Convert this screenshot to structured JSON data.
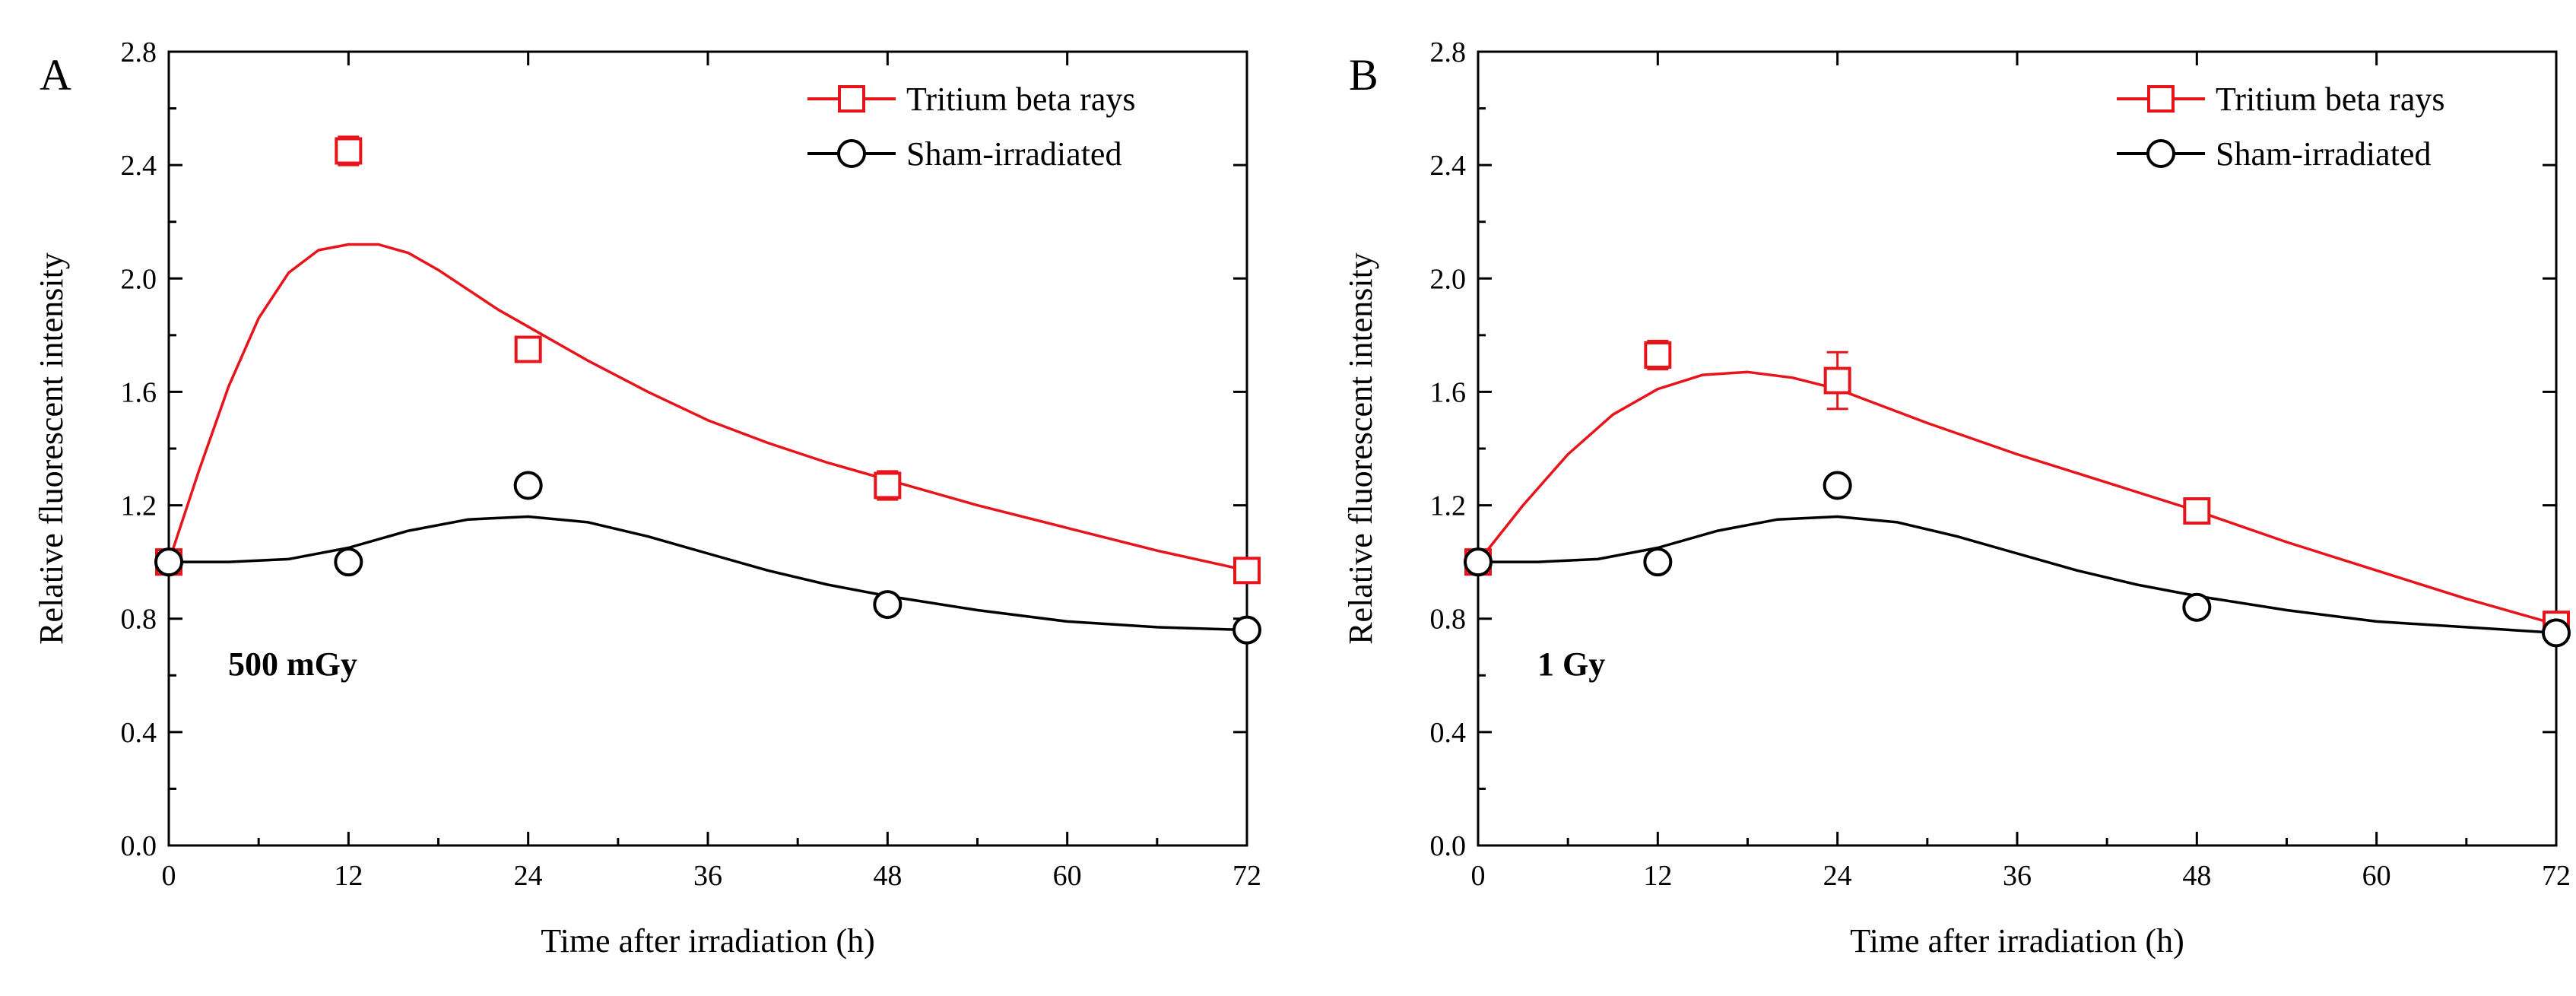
{
  "chart_data": [
    {
      "type": "line",
      "panel_label": "A",
      "annotation": "500 mGy",
      "xlabel": "Time after irradiation (h)",
      "ylabel": "Relative fluorescent intensity",
      "xlim": [
        0,
        72
      ],
      "ylim": [
        0,
        2.8
      ],
      "xticks": [
        "0",
        "12",
        "24",
        "36",
        "48",
        "60",
        "72"
      ],
      "yticks": [
        "0.0",
        "0.4",
        "0.8",
        "1.2",
        "1.6",
        "2.0",
        "2.4",
        "2.8"
      ],
      "grid": false,
      "legend_position": "top-right",
      "series": [
        {
          "name": "Tritium beta rays",
          "color": "#e8141b",
          "marker": "square",
          "x": [
            0,
            12,
            24,
            48,
            72
          ],
          "y": [
            1.0,
            2.45,
            1.75,
            1.27,
            0.97
          ],
          "error": [
            0.02,
            0.05,
            0.03,
            0.05,
            0.02
          ],
          "fit_x": [
            0,
            2,
            4,
            6,
            8,
            10,
            12,
            14,
            16,
            18,
            20,
            22,
            24,
            28,
            32,
            36,
            40,
            44,
            48,
            54,
            60,
            66,
            72
          ],
          "fit_y": [
            1.0,
            1.32,
            1.62,
            1.86,
            2.02,
            2.1,
            2.12,
            2.12,
            2.09,
            2.03,
            1.96,
            1.89,
            1.83,
            1.71,
            1.6,
            1.5,
            1.42,
            1.35,
            1.29,
            1.2,
            1.12,
            1.04,
            0.97
          ]
        },
        {
          "name": "Sham-irradiated",
          "color": "#000000",
          "marker": "circle",
          "x": [
            0,
            12,
            24,
            48,
            72
          ],
          "y": [
            1.0,
            1.0,
            1.27,
            0.85,
            0.76
          ],
          "error": [
            0.02,
            0.02,
            0.02,
            0.02,
            0.01
          ],
          "fit_x": [
            0,
            4,
            8,
            12,
            16,
            20,
            24,
            28,
            32,
            36,
            40,
            44,
            48,
            54,
            60,
            66,
            72
          ],
          "fit_y": [
            1.0,
            1.0,
            1.01,
            1.05,
            1.11,
            1.15,
            1.16,
            1.14,
            1.09,
            1.03,
            0.97,
            0.92,
            0.88,
            0.83,
            0.79,
            0.77,
            0.76
          ]
        }
      ]
    },
    {
      "type": "line",
      "panel_label": "B",
      "annotation": "1 Gy",
      "xlabel": "Time after irradiation (h)",
      "ylabel": "Relative fluorescent intensity",
      "xlim": [
        0,
        72
      ],
      "ylim": [
        0,
        2.8
      ],
      "xticks": [
        "0",
        "12",
        "24",
        "36",
        "48",
        "60",
        "72"
      ],
      "yticks": [
        "0.0",
        "0.4",
        "0.8",
        "1.2",
        "1.6",
        "2.0",
        "2.4",
        "2.8"
      ],
      "grid": false,
      "legend_position": "top-right",
      "series": [
        {
          "name": "Tritium beta rays",
          "color": "#e8141b",
          "marker": "square",
          "x": [
            0,
            12,
            24,
            48,
            72
          ],
          "y": [
            1.0,
            1.73,
            1.64,
            1.18,
            0.78
          ],
          "error": [
            0.02,
            0.05,
            0.1,
            0.03,
            0.02
          ],
          "fit_x": [
            0,
            3,
            6,
            9,
            12,
            15,
            18,
            21,
            24,
            30,
            36,
            42,
            48,
            54,
            60,
            66,
            72
          ],
          "fit_y": [
            1.0,
            1.2,
            1.38,
            1.52,
            1.61,
            1.66,
            1.67,
            1.65,
            1.61,
            1.49,
            1.38,
            1.28,
            1.18,
            1.07,
            0.97,
            0.87,
            0.78
          ]
        },
        {
          "name": "Sham-irradiated",
          "color": "#000000",
          "marker": "circle",
          "x": [
            0,
            12,
            24,
            48,
            72
          ],
          "y": [
            1.0,
            1.0,
            1.27,
            0.84,
            0.75
          ],
          "error": [
            0.02,
            0.02,
            0.03,
            0.02,
            0.01
          ],
          "fit_x": [
            0,
            4,
            8,
            12,
            16,
            20,
            24,
            28,
            32,
            36,
            40,
            44,
            48,
            54,
            60,
            66,
            72
          ],
          "fit_y": [
            1.0,
            1.0,
            1.01,
            1.05,
            1.11,
            1.15,
            1.16,
            1.14,
            1.09,
            1.03,
            0.97,
            0.92,
            0.88,
            0.83,
            0.79,
            0.77,
            0.75
          ]
        }
      ]
    }
  ]
}
